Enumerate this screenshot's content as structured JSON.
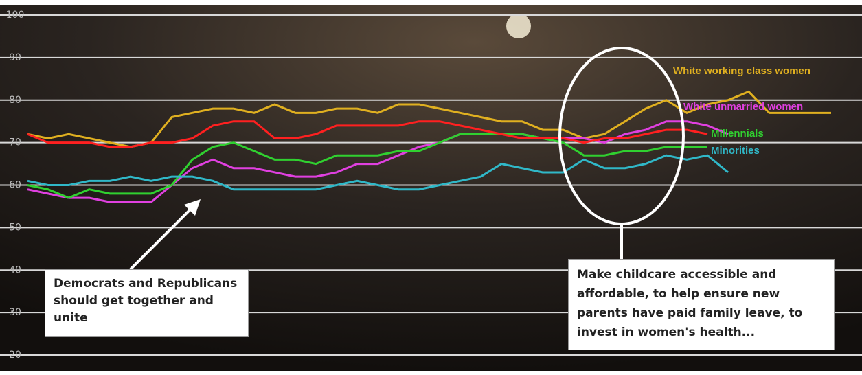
{
  "chart_data": {
    "type": "line",
    "ylim": [
      20,
      100
    ],
    "yticks": [
      20,
      30,
      40,
      50,
      60,
      70,
      80,
      90,
      100
    ],
    "grid": true,
    "series": [
      {
        "name": "White working class women",
        "color": "#e0b020",
        "values": [
          72,
          71,
          72,
          71,
          70,
          69,
          70,
          76,
          77,
          78,
          78,
          77,
          79,
          77,
          77,
          78,
          78,
          77,
          79,
          79,
          78,
          77,
          76,
          75,
          75,
          73,
          73,
          71,
          72,
          75,
          78,
          80,
          77,
          79,
          80,
          82,
          77,
          77,
          77,
          77
        ]
      },
      {
        "name": "White unmarried women",
        "color": "#e040e0",
        "values": [
          59,
          58,
          57,
          57,
          56,
          56,
          56,
          60,
          64,
          66,
          64,
          64,
          63,
          62,
          62,
          63,
          65,
          65,
          67,
          69,
          70,
          72,
          72,
          72,
          72,
          71,
          71,
          71,
          70,
          72,
          73,
          75,
          75,
          74,
          72,
          null,
          null,
          null,
          null,
          null
        ]
      },
      {
        "name": "Millennials",
        "color": "#30d030",
        "values": [
          60,
          59,
          57,
          59,
          58,
          58,
          58,
          60,
          66,
          69,
          70,
          68,
          66,
          66,
          65,
          67,
          67,
          67,
          68,
          68,
          70,
          72,
          72,
          72,
          72,
          71,
          70,
          67,
          67,
          68,
          68,
          69,
          69,
          69,
          null,
          null,
          null,
          null,
          null,
          null
        ]
      },
      {
        "name": "Minorities",
        "color": "#30b8c8",
        "values": [
          61,
          60,
          60,
          61,
          61,
          62,
          61,
          62,
          62,
          61,
          59,
          59,
          59,
          59,
          59,
          60,
          61,
          60,
          59,
          59,
          60,
          61,
          62,
          65,
          64,
          63,
          63,
          66,
          64,
          64,
          65,
          67,
          66,
          67,
          63,
          null,
          null,
          null,
          null,
          null
        ]
      },
      {
        "name": null,
        "color": "#ff2020",
        "values": [
          72,
          70,
          70,
          70,
          69,
          69,
          70,
          70,
          71,
          74,
          75,
          75,
          71,
          71,
          72,
          74,
          74,
          74,
          74,
          75,
          75,
          74,
          73,
          72,
          71,
          71,
          71,
          70,
          71,
          71,
          72,
          73,
          73,
          72,
          null,
          null,
          null,
          null,
          null,
          null
        ]
      }
    ],
    "annotations": [
      {
        "text": "Democrats and Republicans should get together and unite"
      },
      {
        "text": "Make childcare accessible and affordable, to help ensure new parents have paid family leave, to invest in women's health..."
      }
    ]
  }
}
